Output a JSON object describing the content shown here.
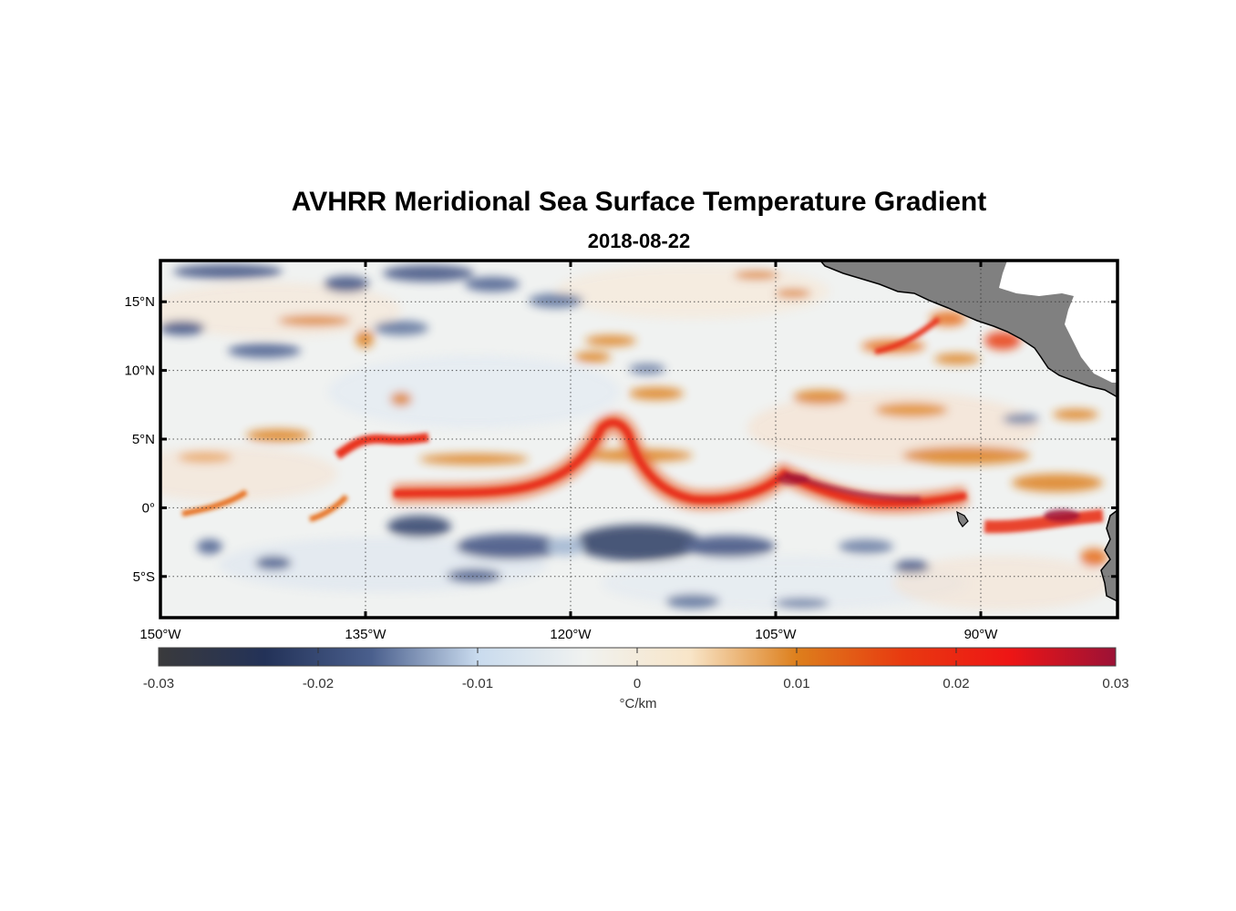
{
  "map": {
    "title": "AVHRR Meridional Sea Surface Temperature Gradient",
    "subtitle": "2018-08-22",
    "lon_range": [
      -150,
      -80
    ],
    "lat_range": [
      -8,
      18
    ],
    "lon_ticks": [
      {
        "value": -150,
        "label": "150°W"
      },
      {
        "value": -135,
        "label": "135°W"
      },
      {
        "value": -120,
        "label": "120°W"
      },
      {
        "value": -105,
        "label": "105°W"
      },
      {
        "value": -90,
        "label": "90°W"
      }
    ],
    "lat_ticks": [
      {
        "value": 15,
        "label": "15°N"
      },
      {
        "value": 10,
        "label": "10°N"
      },
      {
        "value": 5,
        "label": "5°N"
      },
      {
        "value": 0,
        "label": "0°"
      },
      {
        "value": -5,
        "label": "5°S"
      }
    ],
    "grid": true,
    "land_color": "#808080",
    "colorbar": {
      "range": [
        -0.03,
        0.03
      ],
      "ticks": [
        "-0.03",
        "-0.02",
        "-0.01",
        "0",
        "0.01",
        "0.02",
        "0.03"
      ],
      "units": "°C/km",
      "colors": [
        "#3a3a3c",
        "#233258",
        "#4a5f8d",
        "#c9dbee",
        "#f0f2f0",
        "#f8e5c8",
        "#dd7f1c",
        "#e83a10",
        "#ee1515",
        "#9c1236"
      ]
    }
  }
}
